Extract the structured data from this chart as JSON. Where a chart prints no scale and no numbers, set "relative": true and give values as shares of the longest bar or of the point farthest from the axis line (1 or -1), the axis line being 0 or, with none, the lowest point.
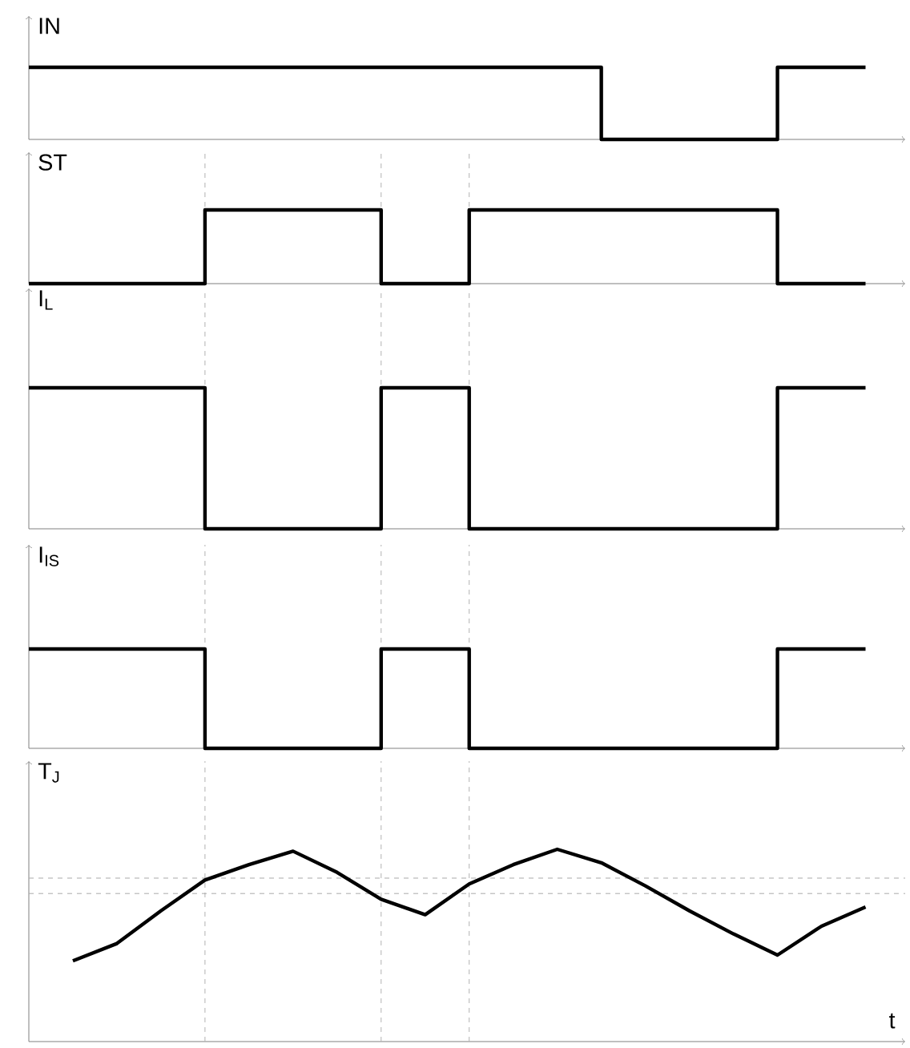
{
  "chart_data": [
    {
      "type": "step",
      "ylabel": "IN",
      "relative": true,
      "color": "#000000",
      "categories": [
        null,
        null,
        null,
        null,
        null,
        null,
        null,
        null,
        null,
        null,
        null,
        null,
        null,
        null,
        null,
        null,
        null,
        null,
        null,
        null
      ],
      "values": [
        1,
        1,
        1,
        1,
        1,
        1,
        1,
        1,
        1,
        1,
        1,
        1,
        1,
        0,
        0,
        0,
        0,
        1,
        1,
        1
      ]
    },
    {
      "type": "step",
      "ylabel": "ST",
      "relative": true,
      "color": "#000000",
      "categories": [
        null,
        null,
        null,
        null,
        null,
        null,
        null,
        null,
        null,
        null,
        null,
        null,
        null,
        null,
        null,
        null,
        null,
        null,
        null,
        null
      ],
      "values": [
        0,
        0,
        0,
        0,
        1,
        1,
        1,
        1,
        0,
        0,
        1,
        1,
        1,
        1,
        1,
        1,
        1,
        0,
        0,
        0
      ],
      "grid": "x"
    },
    {
      "type": "step",
      "ylabel": "I$_{L}$",
      "relative": true,
      "color": "#000000",
      "categories": [
        null,
        null,
        null,
        null,
        null,
        null,
        null,
        null,
        null,
        null,
        null,
        null,
        null,
        null,
        null,
        null,
        null,
        null,
        null,
        null
      ],
      "values": [
        1,
        1,
        1,
        1,
        0,
        0,
        0,
        0,
        1,
        1,
        0,
        0,
        0,
        0,
        0,
        0,
        0,
        1,
        1,
        1
      ],
      "grid": "x"
    },
    {
      "type": "step",
      "ylabel": "I$_{IS}$",
      "relative": true,
      "color": "#000000",
      "categories": [
        null,
        null,
        null,
        null,
        null,
        null,
        null,
        null,
        null,
        null,
        null,
        null,
        null,
        null,
        null,
        null,
        null,
        null,
        null,
        null
      ],
      "values": [
        1,
        1,
        1,
        1,
        0,
        0,
        0,
        0,
        1,
        1,
        0,
        0,
        0,
        0,
        0,
        0,
        0,
        1,
        1,
        1
      ],
      "grid": "x"
    },
    {
      "type": "line",
      "ylabel": "T$_{J}$",
      "xlabel": "t",
      "relative": true,
      "color": "#000000",
      "categories": [
        null,
        null,
        null,
        null,
        null,
        null,
        null,
        null,
        null,
        null,
        null,
        null,
        null,
        null,
        null,
        null,
        null,
        null,
        null,
        null
      ],
      "values": [
        null,
        0.42,
        0.51,
        0.68,
        0.84,
        0.92,
        0.99,
        0.88,
        0.74,
        0.66,
        0.82,
        0.92,
        1,
        0.93,
        0.81,
        0.68,
        0.56,
        0.45,
        0.6,
        0.7
      ],
      "grid": "x",
      "ref_lines": [
        {
          "axis": "y",
          "value": 0.85,
          "color": "#aaaaaa",
          "line_style": "dashed"
        },
        {
          "axis": "y",
          "value": 0.77,
          "color": "#aaaaaa",
          "line_style": "dashed"
        }
      ]
    }
  ]
}
